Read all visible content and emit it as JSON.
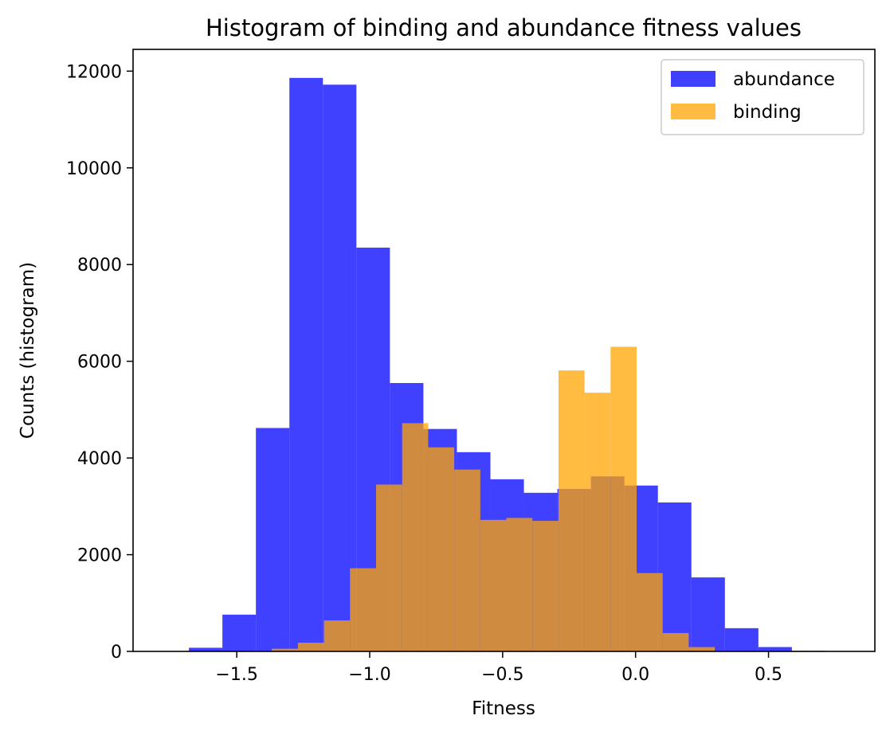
{
  "chart_data": {
    "type": "bar",
    "title": "Histogram of binding and abundance fitness values",
    "xlabel": "Fitness",
    "ylabel": "Counts (histogram)",
    "xlim": [
      -1.89,
      0.9
    ],
    "ylim": [
      0,
      12450
    ],
    "x_ticks": [
      -1.5,
      -1.0,
      -0.5,
      0.0,
      0.5
    ],
    "x_tick_labels": [
      "−1.5",
      "−1.0",
      "−0.5",
      "0.0",
      "0.5"
    ],
    "y_ticks": [
      0,
      2000,
      4000,
      6000,
      8000,
      10000,
      12000
    ],
    "y_tick_labels": [
      "0",
      "2000",
      "4000",
      "6000",
      "8000",
      "10000",
      "12000"
    ],
    "legend_position": "top-right",
    "series": [
      {
        "name": "abundance",
        "color": "#0000ff",
        "opacity": 0.75,
        "bin_edges": [
          -1.68,
          -1.554,
          -1.428,
          -1.302,
          -1.176,
          -1.05,
          -0.924,
          -0.798,
          -0.672,
          -0.546,
          -0.42,
          -0.294,
          -0.168,
          -0.042,
          0.084,
          0.21,
          0.336,
          0.462,
          0.588,
          0.714,
          0.84
        ],
        "values": [
          75,
          760,
          4620,
          11860,
          11720,
          8350,
          5550,
          4600,
          4120,
          3560,
          3280,
          3360,
          3620,
          3430,
          3080,
          1530,
          480,
          90,
          12,
          3
        ]
      },
      {
        "name": "binding",
        "color": "#ffa500",
        "opacity": 0.75,
        "bin_edges": [
          -1.76,
          -1.662,
          -1.564,
          -1.466,
          -1.368,
          -1.27,
          -1.172,
          -1.074,
          -0.976,
          -0.878,
          -0.78,
          -0.682,
          -0.584,
          -0.486,
          -0.388,
          -0.29,
          -0.192,
          -0.094,
          0.004,
          0.102,
          0.2,
          0.298,
          0.396,
          0.494,
          0.592,
          0.69,
          0.788
        ],
        "values": [
          0,
          0,
          3,
          12,
          55,
          180,
          640,
          1720,
          3450,
          4720,
          4220,
          3760,
          2720,
          2760,
          2700,
          5810,
          5350,
          6300,
          1620,
          380,
          90,
          12,
          2,
          0,
          0,
          0
        ]
      }
    ]
  }
}
